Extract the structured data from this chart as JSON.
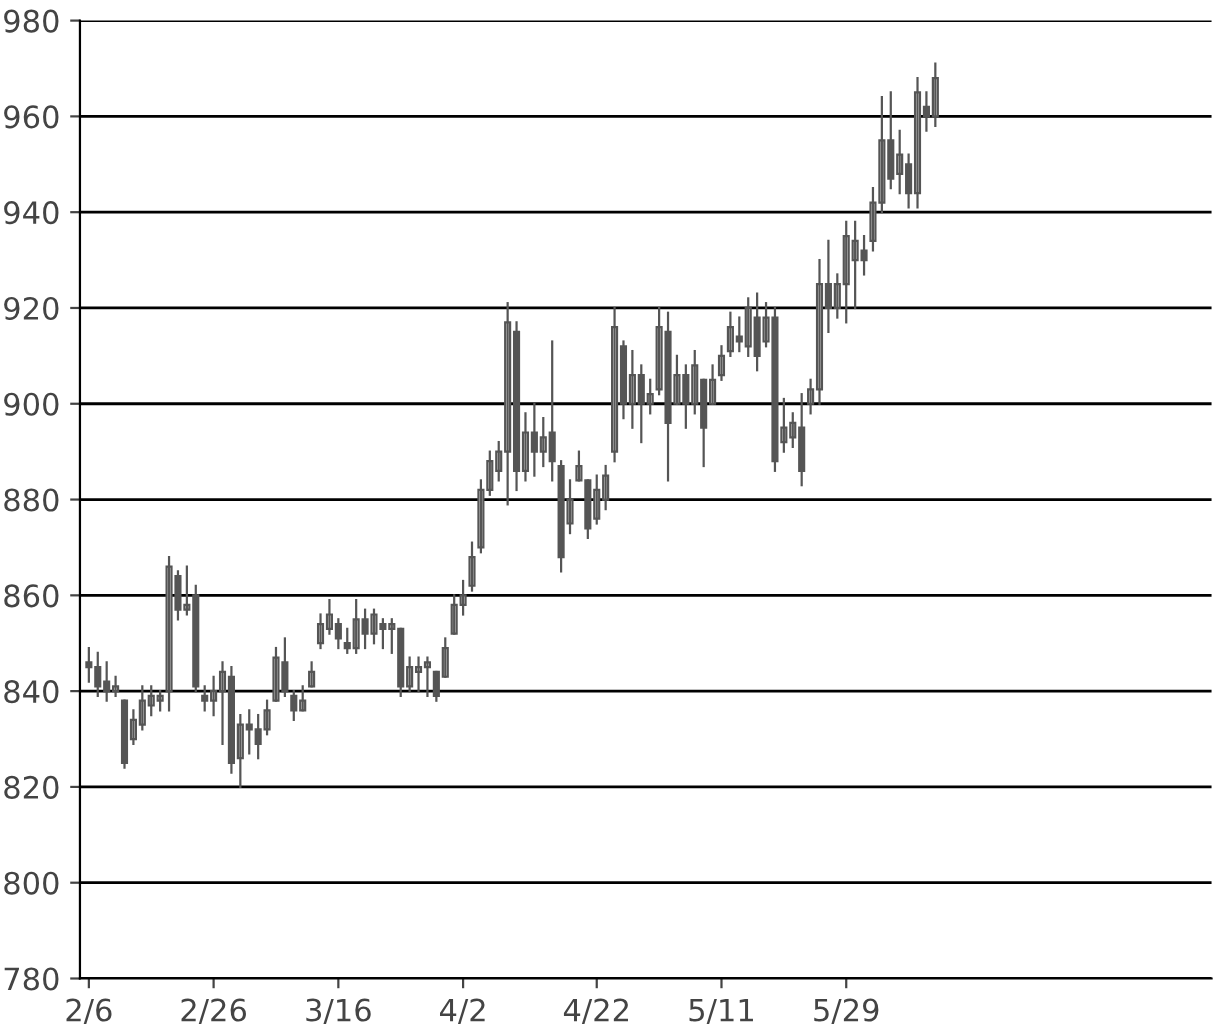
{
  "chart_data": {
    "type": "candlestick",
    "categories": [
      "2/6",
      null,
      null,
      null,
      null,
      null,
      null,
      null,
      null,
      null,
      null,
      null,
      null,
      null,
      "2/26",
      null,
      null,
      null,
      null,
      null,
      null,
      null,
      null,
      null,
      null,
      null,
      null,
      null,
      "3/16",
      null,
      null,
      null,
      null,
      null,
      null,
      null,
      null,
      null,
      null,
      null,
      null,
      null,
      "4/2",
      null,
      null,
      null,
      null,
      null,
      null,
      null,
      null,
      null,
      null,
      null,
      null,
      null,
      null,
      "4/22",
      null,
      null,
      null,
      null,
      null,
      null,
      null,
      null,
      null,
      null,
      null,
      null,
      null,
      "5/11",
      null,
      null,
      null,
      null,
      null,
      null,
      null,
      null,
      null,
      null,
      null,
      null,
      null,
      "5/29",
      null,
      null,
      null,
      null,
      null,
      null,
      null,
      null,
      null,
      null
    ],
    "ohlc": [
      [
        846,
        849,
        842,
        845
      ],
      [
        845,
        848,
        839,
        841
      ],
      [
        842,
        846,
        838,
        840
      ],
      [
        840,
        843,
        839,
        841
      ],
      [
        838,
        838,
        824,
        825
      ],
      [
        830,
        836,
        829,
        834
      ],
      [
        833,
        841,
        832,
        838
      ],
      [
        837,
        841,
        835,
        839
      ],
      [
        838,
        840,
        836,
        839
      ],
      [
        840,
        868,
        836,
        866
      ],
      [
        864,
        865,
        855,
        857
      ],
      [
        857,
        866,
        856,
        858
      ],
      [
        860,
        862,
        840,
        841
      ],
      [
        839,
        841,
        836,
        838
      ],
      [
        838,
        843,
        835,
        840
      ],
      [
        840,
        846,
        829,
        844
      ],
      [
        843,
        845,
        823,
        825
      ],
      [
        826,
        835,
        820,
        833
      ],
      [
        833,
        836,
        827,
        832
      ],
      [
        832,
        835,
        826,
        829
      ],
      [
        832,
        838,
        831,
        836
      ],
      [
        838,
        849,
        838,
        847
      ],
      [
        846,
        851,
        839,
        840
      ],
      [
        839,
        840,
        834,
        836
      ],
      [
        836,
        841,
        836,
        838
      ],
      [
        841,
        846,
        841,
        844
      ],
      [
        850,
        856,
        849,
        854
      ],
      [
        853,
        859,
        852,
        856
      ],
      [
        854,
        855,
        849,
        851
      ],
      [
        850,
        853,
        848,
        849
      ],
      [
        849,
        859,
        848,
        855
      ],
      [
        855,
        857,
        849,
        852
      ],
      [
        852,
        857,
        850,
        856
      ],
      [
        854,
        855,
        849,
        853
      ],
      [
        853,
        855,
        848,
        854
      ],
      [
        853,
        853,
        839,
        841
      ],
      [
        841,
        847,
        840,
        845
      ],
      [
        844,
        847,
        840,
        845
      ],
      [
        845,
        847,
        839,
        846
      ],
      [
        844,
        844,
        838,
        839
      ],
      [
        843,
        851,
        843,
        849
      ],
      [
        852,
        860,
        852,
        858
      ],
      [
        858,
        863,
        856,
        860
      ],
      [
        862,
        871,
        861,
        868
      ],
      [
        870,
        884,
        869,
        882
      ],
      [
        882,
        890,
        881,
        888
      ],
      [
        886,
        892,
        884,
        890
      ],
      [
        890,
        921,
        879,
        917
      ],
      [
        915,
        917,
        882,
        886
      ],
      [
        886,
        898,
        884,
        894
      ],
      [
        894,
        900,
        885,
        890
      ],
      [
        890,
        897,
        887,
        893
      ],
      [
        894,
        913,
        884,
        888
      ],
      [
        887,
        888,
        865,
        868
      ],
      [
        875,
        884,
        873,
        880
      ],
      [
        884,
        890,
        884,
        887
      ],
      [
        884,
        884,
        872,
        874
      ],
      [
        876,
        885,
        875,
        882
      ],
      [
        880,
        887,
        878,
        885
      ],
      [
        890,
        920,
        888,
        916
      ],
      [
        912,
        913,
        897,
        900
      ],
      [
        900,
        911,
        895,
        906
      ],
      [
        906,
        908,
        892,
        900
      ],
      [
        900,
        905,
        898,
        902
      ],
      [
        903,
        920,
        902,
        916
      ],
      [
        915,
        919,
        884,
        896
      ],
      [
        900,
        910,
        900,
        906
      ],
      [
        906,
        908,
        895,
        900
      ],
      [
        900,
        911,
        898,
        908
      ],
      [
        905,
        905,
        887,
        895
      ],
      [
        900,
        908,
        900,
        905
      ],
      [
        906,
        912,
        905,
        910
      ],
      [
        911,
        919,
        910,
        916
      ],
      [
        914,
        918,
        911,
        913
      ],
      [
        912,
        922,
        910,
        920
      ],
      [
        918,
        923,
        907,
        910
      ],
      [
        913,
        921,
        912,
        918
      ],
      [
        918,
        920,
        886,
        888
      ],
      [
        892,
        901,
        890,
        895
      ],
      [
        893,
        898,
        891,
        896
      ],
      [
        895,
        902,
        883,
        886
      ],
      [
        900,
        905,
        898,
        903
      ],
      [
        903,
        930,
        900,
        925
      ],
      [
        925,
        934,
        915,
        920
      ],
      [
        920,
        927,
        918,
        925
      ],
      [
        925,
        938,
        917,
        935
      ],
      [
        930,
        938,
        920,
        934
      ],
      [
        932,
        935,
        927,
        930
      ],
      [
        934,
        945,
        932,
        942
      ],
      [
        942,
        964,
        940,
        955
      ],
      [
        955,
        965,
        945,
        947
      ],
      [
        948,
        957,
        944,
        952
      ],
      [
        950,
        952,
        941,
        944
      ],
      [
        944,
        968,
        941,
        965
      ],
      [
        962,
        965,
        957,
        960
      ],
      [
        960,
        971,
        958,
        968
      ]
    ],
    "color": "#555555",
    "ylim": [
      780,
      980
    ],
    "yticks": [
      780,
      800,
      820,
      840,
      860,
      880,
      900,
      920,
      940,
      960,
      980
    ],
    "grid": "y"
  }
}
